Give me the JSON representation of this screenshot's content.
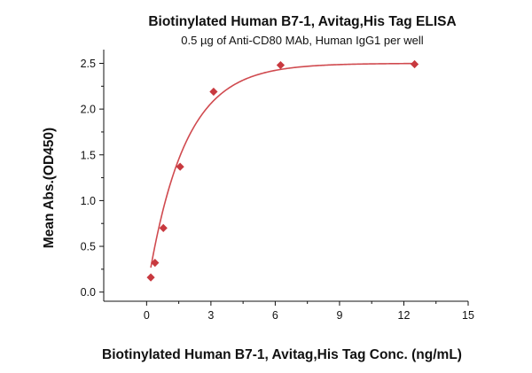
{
  "chart_data": {
    "type": "scatter",
    "title": "Biotinylated Human B7-1, Avitag,His Tag ELISA",
    "subtitle": "0.5 µg of Anti-CD80 MAb, Human IgG1 per well",
    "xlabel": "Biotinylated Human B7-1, Avitag,His Tag Conc. (ng/mL)",
    "ylabel": "Mean Abs.(OD450)",
    "xlim": [
      -2,
      15
    ],
    "ylim": [
      -0.1,
      2.65
    ],
    "xticks": [
      0,
      3,
      6,
      9,
      12,
      15
    ],
    "yticks": [
      0.0,
      0.5,
      1.0,
      1.5,
      2.0,
      2.5
    ],
    "xtick_labels": [
      "0",
      "3",
      "6",
      "9",
      "12",
      "15"
    ],
    "ytick_labels": [
      "0.0",
      "0.5",
      "1.0",
      "1.5",
      "2.0",
      "2.5"
    ],
    "grid": false,
    "legend": "none",
    "series": [
      {
        "x": [
          0.195,
          0.391,
          0.781,
          1.563,
          3.125,
          6.25,
          12.5
        ],
        "y": [
          0.16,
          0.32,
          0.7,
          1.37,
          2.19,
          2.48,
          2.49
        ],
        "marker": "diamond",
        "color": "#c8393f",
        "fit_line": true
      }
    ],
    "fit_curve": {
      "model": "saturation",
      "top": 2.5,
      "bottom": 0.0,
      "rate": 0.58,
      "color": "#d04a4f"
    }
  }
}
